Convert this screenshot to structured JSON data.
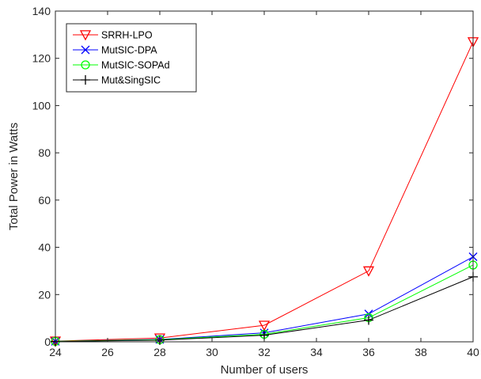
{
  "chart_data": {
    "type": "line",
    "title": "",
    "xlabel": "Number of users",
    "ylabel": "Total Power in Watts",
    "x": [
      24,
      28,
      32,
      36,
      40
    ],
    "xlim": [
      24,
      40
    ],
    "ylim": [
      0,
      140
    ],
    "xticks": [
      "24",
      "26",
      "28",
      "30",
      "32",
      "34",
      "36",
      "38",
      "40"
    ],
    "yticks": [
      "0",
      "20",
      "40",
      "60",
      "80",
      "100",
      "120",
      "140"
    ],
    "grid": false,
    "legend_position": "top-left",
    "series": [
      {
        "name": "SRRH-LPO",
        "values": [
          0.3,
          1.6,
          7,
          30,
          127
        ],
        "color": "#ff0000",
        "marker": "triangle-down"
      },
      {
        "name": "MutSIC-DPA",
        "values": [
          0.2,
          1.0,
          3.8,
          11.8,
          36
        ],
        "color": "#0000ff",
        "marker": "x"
      },
      {
        "name": "MutSIC-SOPAd",
        "values": [
          0.2,
          0.9,
          3.2,
          10.2,
          32.5
        ],
        "color": "#00ff00",
        "marker": "circle"
      },
      {
        "name": "Mut&SingSIC",
        "values": [
          0.1,
          0.7,
          2.8,
          9.2,
          27.5
        ],
        "color": "#000000",
        "marker": "plus"
      }
    ]
  }
}
